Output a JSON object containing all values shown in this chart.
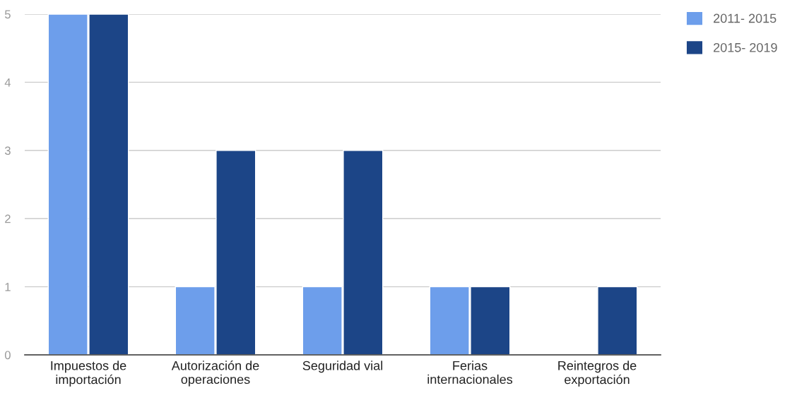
{
  "chart_data": {
    "type": "bar",
    "categories": [
      "Impuestos de\nimportación",
      "Autorización de\noperaciones",
      "Seguridad vial",
      "Ferias\ninternacionales",
      "Reintegros de\nexportación"
    ],
    "series": [
      {
        "name": "2011- 2015",
        "color": "#6d9eeb",
        "values": [
          5,
          1,
          1,
          1,
          null
        ]
      },
      {
        "name": "2015- 2019",
        "color": "#1c4587",
        "values": [
          5,
          3,
          3,
          1,
          1
        ]
      }
    ],
    "ylim": [
      0,
      5
    ],
    "yticks": [
      0,
      1,
      2,
      3,
      4,
      5
    ],
    "grid": "y",
    "legend": "top right"
  }
}
